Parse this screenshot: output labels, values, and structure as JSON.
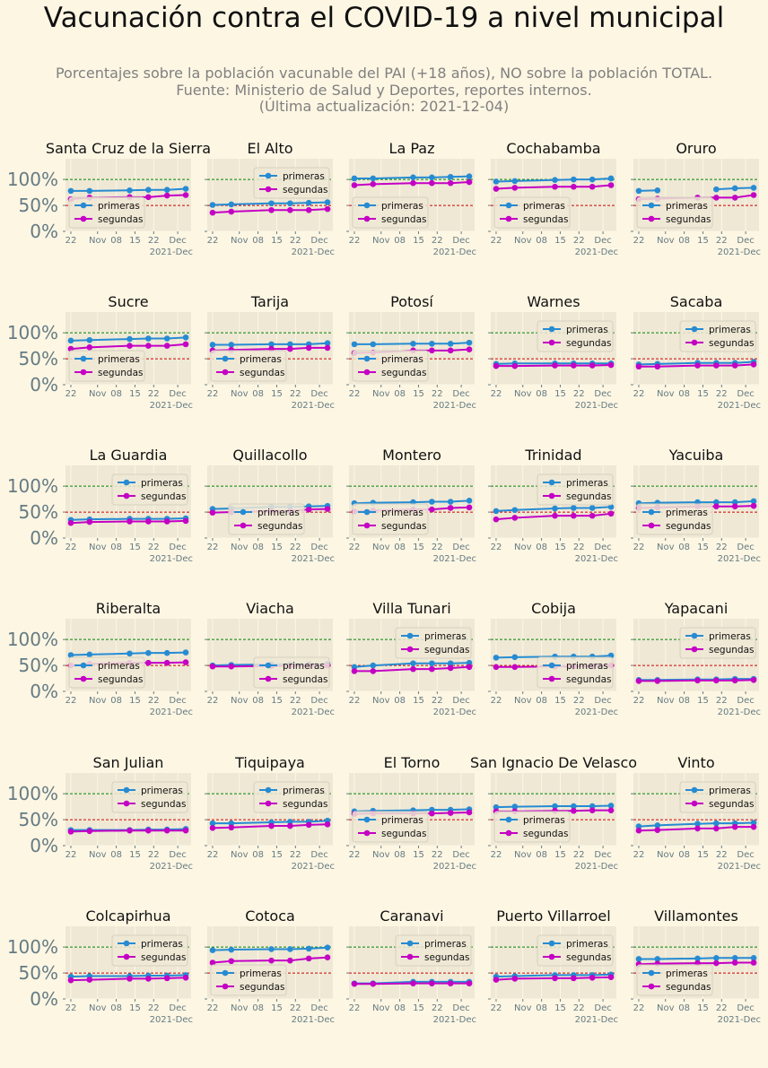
{
  "title": "Vacunación contra el COVID-19 a nivel municipal",
  "subtitle": [
    "Porcentajes sobre la población vacunable del PAI (+18 años), NO sobre la población TOTAL.",
    "Fuente: Ministerio de Salud y Deportes, reportes internos.",
    "(Última actualización: 2021-12-04)"
  ],
  "colors": {
    "background": "#fdf6e3",
    "plot_background": "#eee8d5",
    "primeras": "#268bd2",
    "segundas": "#c400c4",
    "ref_100": "#008000",
    "ref_50": "#cc0000",
    "tick_text": "#657b83"
  },
  "chart_data": {
    "type": "line",
    "xlabel": "",
    "ylabel": "",
    "ylim": [
      0,
      140
    ],
    "yticks": [
      "0%",
      "50%",
      "100%"
    ],
    "x": [
      "2021-10-22",
      "2021-10-29",
      "2021-11-13",
      "2021-11-20",
      "2021-11-27",
      "2021-12-04"
    ],
    "xtick_labels": [
      "22",
      "Nov",
      "08",
      "15",
      "22",
      "Dec"
    ],
    "x_offset_label": "2021-Dec",
    "reference_lines": [
      100,
      50
    ],
    "legend_labels": [
      "primeras",
      "segundas"
    ],
    "panels": [
      {
        "name": "Santa Cruz de la Sierra",
        "legend": "lower-left",
        "primeras": [
          78,
          78,
          79,
          80,
          80,
          82
        ],
        "segundas": [
          62,
          65,
          66,
          66,
          69,
          70
        ]
      },
      {
        "name": "El Alto",
        "legend": "upper-right",
        "primeras": [
          51,
          52,
          54,
          54,
          55,
          56
        ],
        "segundas": [
          36,
          38,
          41,
          41,
          41,
          43
        ]
      },
      {
        "name": "La Paz",
        "legend": "lower-left",
        "primeras": [
          102,
          102,
          104,
          104,
          105,
          106
        ],
        "segundas": [
          89,
          91,
          93,
          93,
          93,
          95
        ]
      },
      {
        "name": "Cochabamba",
        "legend": "lower-left",
        "primeras": [
          96,
          97,
          99,
          100,
          100,
          102
        ],
        "segundas": [
          82,
          84,
          86,
          86,
          86,
          89
        ]
      },
      {
        "name": "Oruro",
        "legend": "lower-left",
        "primeras": [
          78,
          79,
          null,
          81,
          83,
          84
        ],
        "segundas": [
          62,
          63,
          65,
          65,
          65,
          70
        ]
      },
      {
        "name": "Sucre",
        "legend": "lower-left",
        "primeras": [
          85,
          86,
          88,
          89,
          89,
          91
        ],
        "segundas": [
          69,
          72,
          75,
          75,
          75,
          78
        ]
      },
      {
        "name": "Tarija",
        "legend": "lower-left",
        "primeras": [
          77,
          77,
          78,
          78,
          78,
          80
        ],
        "segundas": [
          66,
          67,
          69,
          69,
          71,
          71
        ]
      },
      {
        "name": "Potosí",
        "legend": "lower-left",
        "primeras": [
          78,
          78,
          79,
          79,
          79,
          81
        ],
        "segundas": [
          61,
          62,
          66,
          66,
          66,
          68
        ]
      },
      {
        "name": "Warnes",
        "legend": "upper-right",
        "primeras": [
          40,
          41,
          41,
          41,
          41,
          41
        ],
        "segundas": [
          36,
          36,
          37,
          37,
          37,
          38
        ]
      },
      {
        "name": "Sacaba",
        "legend": "upper-right",
        "primeras": [
          39,
          40,
          42,
          42,
          42,
          44
        ],
        "segundas": [
          35,
          35,
          37,
          37,
          37,
          39
        ]
      },
      {
        "name": "La Guardia",
        "legend": "upper-right",
        "primeras": [
          35,
          36,
          37,
          37,
          37,
          38
        ],
        "segundas": [
          29,
          31,
          32,
          32,
          32,
          33
        ]
      },
      {
        "name": "Quillacollo",
        "legend": "lower-center",
        "primeras": [
          56,
          57,
          60,
          60,
          61,
          62
        ],
        "segundas": [
          49,
          50,
          52,
          52,
          55,
          56
        ]
      },
      {
        "name": "Montero",
        "legend": "lower-left",
        "primeras": [
          67,
          68,
          69,
          70,
          70,
          72
        ],
        "segundas": [
          51,
          53,
          55,
          55,
          58,
          59
        ]
      },
      {
        "name": "Trinidad",
        "legend": "upper-right",
        "primeras": [
          52,
          54,
          57,
          58,
          58,
          60
        ],
        "segundas": [
          36,
          39,
          43,
          43,
          43,
          47
        ]
      },
      {
        "name": "Yacuiba",
        "legend": "lower-left",
        "primeras": [
          67,
          68,
          69,
          69,
          69,
          71
        ],
        "segundas": [
          58,
          59,
          61,
          61,
          61,
          62
        ]
      },
      {
        "name": "Riberalta",
        "legend": "lower-left",
        "primeras": [
          70,
          71,
          73,
          74,
          74,
          75
        ],
        "segundas": [
          50,
          53,
          55,
          55,
          55,
          56
        ]
      },
      {
        "name": "Viacha",
        "legend": "lower-right",
        "primeras": [
          50,
          51,
          52,
          52,
          52,
          53
        ],
        "segundas": [
          48,
          48,
          49,
          49,
          50,
          50
        ]
      },
      {
        "name": "Villa Tunari",
        "legend": "upper-right",
        "primeras": [
          47,
          50,
          54,
          54,
          54,
          55
        ],
        "segundas": [
          39,
          39,
          43,
          43,
          45,
          47
        ]
      },
      {
        "name": "Cobija",
        "legend": "lower-right",
        "primeras": [
          65,
          66,
          67,
          67,
          67,
          69
        ],
        "segundas": [
          47,
          47,
          48,
          48,
          49,
          50
        ]
      },
      {
        "name": "Yapacani",
        "legend": "upper-right",
        "primeras": [
          22,
          22,
          23,
          23,
          24,
          24
        ],
        "segundas": [
          20,
          20,
          21,
          21,
          21,
          22
        ]
      },
      {
        "name": "San Julian",
        "legend": "upper-right",
        "primeras": [
          30,
          30,
          30,
          31,
          31,
          32
        ],
        "segundas": [
          27,
          28,
          29,
          29,
          29,
          29
        ]
      },
      {
        "name": "Tiquipaya",
        "legend": "upper-right",
        "primeras": [
          43,
          43,
          45,
          46,
          46,
          48
        ],
        "segundas": [
          34,
          35,
          38,
          38,
          40,
          41
        ]
      },
      {
        "name": "El Torno",
        "legend": "lower-left",
        "primeras": [
          66,
          67,
          68,
          69,
          69,
          70
        ],
        "segundas": [
          61,
          62,
          62,
          62,
          63,
          64
        ]
      },
      {
        "name": "San Ignacio De Velasco",
        "legend": "lower-left",
        "primeras": [
          74,
          75,
          76,
          76,
          76,
          77
        ],
        "segundas": [
          66,
          66,
          67,
          67,
          68,
          68
        ]
      },
      {
        "name": "Vinto",
        "legend": "upper-right",
        "primeras": [
          37,
          39,
          42,
          43,
          43,
          44
        ],
        "segundas": [
          29,
          30,
          33,
          33,
          36,
          36
        ]
      },
      {
        "name": "Colcapirhua",
        "legend": "upper-right",
        "primeras": [
          43,
          44,
          44,
          45,
          45,
          46
        ],
        "segundas": [
          36,
          37,
          39,
          39,
          40,
          41
        ]
      },
      {
        "name": "Cotoca",
        "legend": "lower-left",
        "primeras": [
          94,
          95,
          96,
          96,
          97,
          99
        ],
        "segundas": [
          70,
          73,
          74,
          74,
          78,
          80
        ]
      },
      {
        "name": "Caranavi",
        "legend": "upper-right",
        "primeras": [
          30,
          30,
          33,
          33,
          33,
          33
        ],
        "segundas": [
          29,
          29,
          30,
          30,
          30,
          30
        ]
      },
      {
        "name": "Puerto Villarroel",
        "legend": "upper-right",
        "primeras": [
          43,
          44,
          46,
          46,
          46,
          47
        ],
        "segundas": [
          37,
          39,
          40,
          40,
          41,
          42
        ]
      },
      {
        "name": "Villamontes",
        "legend": "lower-left",
        "primeras": [
          77,
          77,
          78,
          79,
          79,
          79
        ],
        "segundas": [
          67,
          68,
          69,
          69,
          70,
          70
        ]
      }
    ]
  }
}
